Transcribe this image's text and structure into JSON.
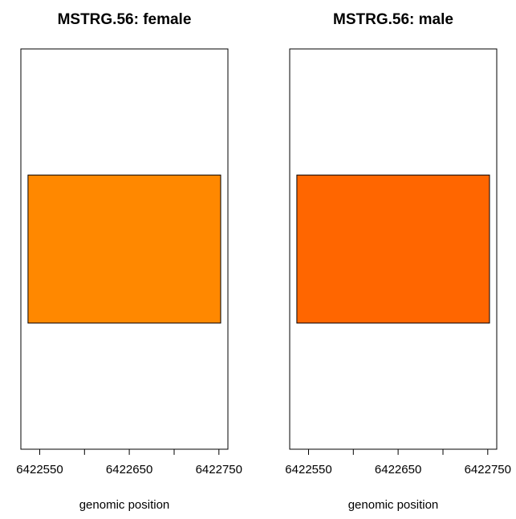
{
  "chart_data": [
    {
      "type": "bar",
      "title": "MSTRG.56: female",
      "xlabel": "genomic position",
      "ylabel": "",
      "xticks": [
        6422550,
        6422600,
        6422650,
        6422700,
        6422750
      ],
      "xtick_labels": [
        "6422550",
        "",
        "6422650",
        "",
        "6422750"
      ],
      "xlim": [
        6422529,
        6422760
      ],
      "ylim": [
        0,
        1
      ],
      "grid": false,
      "exons": [
        {
          "start": 6422537,
          "end": 6422752,
          "ymin": 0.315,
          "ymax": 0.685,
          "color": "#FF8800"
        }
      ]
    },
    {
      "type": "bar",
      "title": "MSTRG.56: male",
      "xlabel": "genomic position",
      "ylabel": "",
      "xticks": [
        6422550,
        6422600,
        6422650,
        6422700,
        6422750
      ],
      "xtick_labels": [
        "6422550",
        "",
        "6422650",
        "",
        "6422750"
      ],
      "xlim": [
        6422529,
        6422760
      ],
      "ylim": [
        0,
        1
      ],
      "grid": false,
      "exons": [
        {
          "start": 6422537,
          "end": 6422752,
          "ymin": 0.315,
          "ymax": 0.685,
          "color": "#FF6600"
        }
      ]
    }
  ]
}
